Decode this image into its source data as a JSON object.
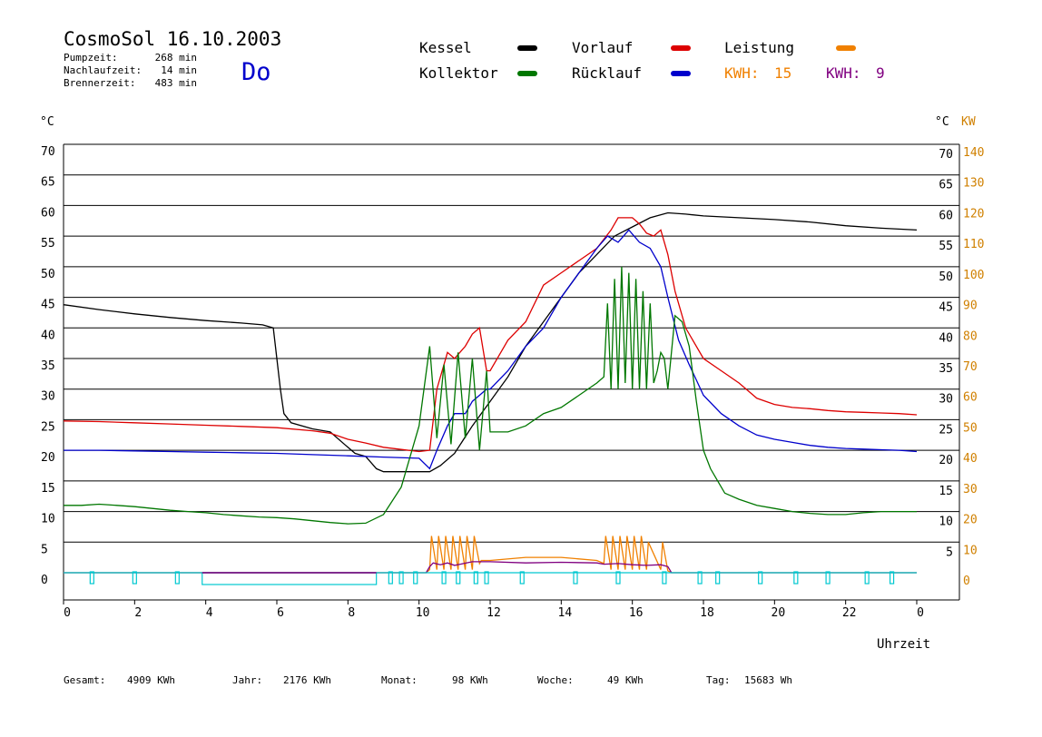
{
  "header": {
    "title": "CosmoSol 16.10.2003",
    "day": "Do",
    "stats": [
      {
        "label": "Pumpzeit:",
        "value": "268 min"
      },
      {
        "label": "Nachlaufzeit:",
        "value": "14 min"
      },
      {
        "label": "Brennerzeit:",
        "value": "483 min"
      }
    ]
  },
  "legend": [
    {
      "label": "Kessel",
      "color": "#000000"
    },
    {
      "label": "Vorlauf",
      "color": "#dd0000"
    },
    {
      "label": "Leistung",
      "color": "#f08000"
    },
    {
      "label": "Kollektor",
      "color": "#007700"
    },
    {
      "label": "Rücklauf",
      "color": "#0000cc"
    }
  ],
  "kwh": [
    {
      "label": "KWH:",
      "value": "15",
      "color": "#f08000"
    },
    {
      "label": "KWH:",
      "value": "9",
      "color": "#800080"
    }
  ],
  "axes": {
    "left_unit": "°C",
    "right_unit": "°C",
    "right2_unit": "KW",
    "left_ticks": [
      "70",
      "65",
      "60",
      "55",
      "50",
      "45",
      "40",
      "35",
      "30",
      "25",
      "20",
      "15",
      "10",
      "5",
      "0"
    ],
    "right_ticks": [
      "70",
      "65",
      "60",
      "55",
      "50",
      "45",
      "40",
      "35",
      "30",
      "25",
      "20",
      "15",
      "10",
      "5"
    ],
    "right2_ticks": [
      "140",
      "130",
      "120",
      "110",
      "100",
      "90",
      "80",
      "70",
      "60",
      "50",
      "40",
      "30",
      "20",
      "10",
      "0"
    ],
    "x_ticks": [
      "0",
      "2",
      "4",
      "6",
      "8",
      "10",
      "12",
      "14",
      "16",
      "18",
      "20",
      "22",
      "0"
    ],
    "xlabel": "Uhrzeit"
  },
  "footer": [
    {
      "label": "Gesamt:",
      "value": "4909 KWh"
    },
    {
      "label": "Jahr:",
      "value": "2176 KWh"
    },
    {
      "label": "Monat:",
      "value": "98 KWh"
    },
    {
      "label": "Woche:",
      "value": "49 KWh"
    },
    {
      "label": "Tag:",
      "value": "15683 Wh"
    }
  ],
  "chart_data": {
    "type": "line",
    "xlabel": "Uhrzeit",
    "ylabel": "°C",
    "xlim": [
      0,
      24
    ],
    "ylim": [
      0,
      70
    ],
    "y2lim": [
      0,
      140
    ],
    "grid": true,
    "series": [
      {
        "name": "Kessel",
        "color": "#000000",
        "x": [
          0,
          1,
          2,
          3,
          4,
          5,
          5.6,
          5.9,
          6.0,
          6.1,
          6.2,
          6.4,
          7,
          7.5,
          8,
          8.2,
          8.5,
          8.8,
          9,
          10,
          10.3,
          10.6,
          11,
          11.5,
          12,
          12.5,
          13,
          13.5,
          14,
          14.5,
          15,
          15.5,
          16,
          16.5,
          17,
          17.5,
          18,
          19,
          20,
          21,
          22,
          23,
          24
        ],
        "y": [
          43.8,
          43,
          42.3,
          41.7,
          41.2,
          40.8,
          40.5,
          40,
          35,
          30,
          26,
          24.5,
          23.5,
          23,
          20.5,
          19.5,
          19,
          17,
          16.5,
          16.5,
          16.5,
          17.5,
          19.5,
          24,
          28,
          32,
          37,
          41,
          45,
          49,
          52,
          55,
          56.5,
          58,
          58.8,
          58.6,
          58.3,
          58,
          57.7,
          57.3,
          56.7,
          56.3,
          56
        ]
      },
      {
        "name": "Vorlauf",
        "color": "#dd0000",
        "x": [
          0,
          1,
          2,
          3,
          4,
          5,
          6,
          7,
          7.5,
          8,
          8.5,
          9,
          10,
          10.3,
          10.5,
          10.8,
          11,
          11.3,
          11.5,
          11.7,
          11.9,
          12,
          12.5,
          13,
          13.5,
          14,
          14.5,
          15,
          15.4,
          15.6,
          15.8,
          16,
          16.2,
          16.4,
          16.6,
          16.8,
          17,
          17.2,
          17.5,
          18,
          18.5,
          19,
          19.5,
          20,
          20.5,
          21,
          21.5,
          22,
          22.5,
          23,
          23.5,
          24
        ],
        "y": [
          24.8,
          24.7,
          24.5,
          24.3,
          24.1,
          23.9,
          23.7,
          23.2,
          22.8,
          21.8,
          21.2,
          20.5,
          19.8,
          20,
          30,
          36,
          35,
          37,
          39,
          40,
          33,
          33,
          38,
          41,
          47,
          49,
          51,
          53,
          56,
          58,
          58,
          58,
          57,
          55.5,
          55,
          56,
          52,
          46,
          40,
          35,
          33,
          31,
          28.5,
          27.5,
          27,
          26.8,
          26.5,
          26.3,
          26.2,
          26.1,
          26,
          25.8
        ]
      },
      {
        "name": "Rücklauf",
        "color": "#0000cc",
        "x": [
          0,
          1,
          2,
          3,
          4,
          5,
          6,
          7,
          8,
          9,
          10,
          10.3,
          10.5,
          10.8,
          11,
          11.3,
          11.5,
          11.7,
          11.9,
          12,
          12.5,
          13,
          13.5,
          14,
          14.5,
          15,
          15.3,
          15.6,
          15.9,
          16.2,
          16.5,
          16.8,
          17,
          17.3,
          17.6,
          18,
          18.5,
          19,
          19.5,
          20,
          20.5,
          21,
          21.5,
          22,
          22.5,
          23,
          23.5,
          24
        ],
        "y": [
          20,
          20,
          19.9,
          19.8,
          19.7,
          19.6,
          19.5,
          19.3,
          19.1,
          18.9,
          18.7,
          17,
          20,
          24,
          26,
          26,
          28,
          29,
          30,
          30,
          33,
          37,
          40,
          45,
          49,
          53,
          55,
          54,
          56,
          54,
          53,
          50,
          45,
          38,
          34,
          29,
          26,
          24,
          22.5,
          21.8,
          21.3,
          20.8,
          20.5,
          20.3,
          20.2,
          20.1,
          20,
          19.8
        ]
      },
      {
        "name": "Kollektor",
        "color": "#007700",
        "x": [
          0,
          0.5,
          1,
          1.5,
          2,
          2.5,
          3,
          3.5,
          4,
          4.5,
          5,
          5.5,
          6,
          6.5,
          7,
          7.5,
          8,
          8.5,
          9,
          9.5,
          10,
          10.3,
          10.5,
          10.7,
          10.9,
          11.1,
          11.3,
          11.5,
          11.7,
          11.9,
          12,
          12.5,
          13,
          13.5,
          14,
          14.5,
          15,
          15.2,
          15.3,
          15.4,
          15.5,
          15.6,
          15.7,
          15.8,
          15.9,
          16,
          16.1,
          16.2,
          16.3,
          16.4,
          16.5,
          16.6,
          16.7,
          16.8,
          16.9,
          17,
          17.2,
          17.4,
          17.6,
          17.8,
          18,
          18.2,
          18.4,
          18.6,
          19,
          19.5,
          20,
          20.5,
          21,
          21.5,
          22,
          22.5,
          23,
          23.5,
          24
        ],
        "y": [
          11,
          11,
          11.2,
          11,
          10.8,
          10.5,
          10.2,
          10,
          9.8,
          9.5,
          9.3,
          9.1,
          9,
          8.8,
          8.5,
          8.2,
          8,
          8.1,
          9.5,
          14,
          24,
          37,
          22,
          34,
          21,
          36,
          22,
          35,
          20,
          33,
          23,
          23,
          24,
          26,
          27,
          29,
          31,
          32,
          44,
          30,
          48,
          30,
          50,
          31,
          49,
          30,
          48,
          30,
          46,
          30,
          44,
          31,
          33,
          36,
          35,
          30,
          42,
          41,
          37,
          28,
          20,
          17,
          15,
          13,
          12,
          11,
          10.5,
          10,
          9.7,
          9.5,
          9.5,
          9.8,
          10,
          10,
          10
        ]
      },
      {
        "name": "Leistung",
        "color": "#f08000",
        "x": [
          0,
          10.2,
          10.3,
          10.35,
          10.5,
          10.55,
          10.7,
          10.75,
          10.9,
          10.95,
          11.1,
          11.15,
          11.3,
          11.35,
          11.5,
          11.55,
          11.7,
          11.75,
          12,
          13,
          14,
          15,
          15.2,
          15.25,
          15.4,
          15.45,
          15.6,
          15.65,
          15.8,
          15.85,
          16,
          16.05,
          16.2,
          16.25,
          16.4,
          16.45,
          16.8,
          16.85,
          17,
          17.1,
          24
        ],
        "y": [
          0,
          0,
          0.5,
          6,
          0.5,
          6,
          0.5,
          6,
          0.5,
          6,
          0.5,
          6,
          0.5,
          6,
          0.5,
          6,
          1.5,
          2,
          2,
          2.5,
          2.5,
          2,
          1.5,
          6,
          0.5,
          6,
          0.5,
          6,
          0.5,
          6,
          0.5,
          6,
          0.5,
          6,
          0.5,
          5,
          0.5,
          5,
          0.3,
          0,
          0
        ]
      },
      {
        "name": "",
        "color": "#800080",
        "x": [
          0,
          10.2,
          10.3,
          10.4,
          10.6,
          10.8,
          11,
          11.5,
          12,
          13,
          14,
          15,
          15.2,
          15.6,
          16,
          16.4,
          16.8,
          17,
          17.1,
          24
        ],
        "y": [
          0,
          0,
          1,
          1.6,
          1.3,
          1.6,
          1.2,
          1.8,
          1.8,
          1.6,
          1.7,
          1.6,
          1.4,
          1.5,
          1.3,
          1.2,
          1.3,
          1,
          0,
          0
        ]
      },
      {
        "name": "",
        "color": "#00c8d0",
        "x": [
          0,
          24
        ],
        "y": [
          0,
          0
        ]
      }
    ]
  }
}
